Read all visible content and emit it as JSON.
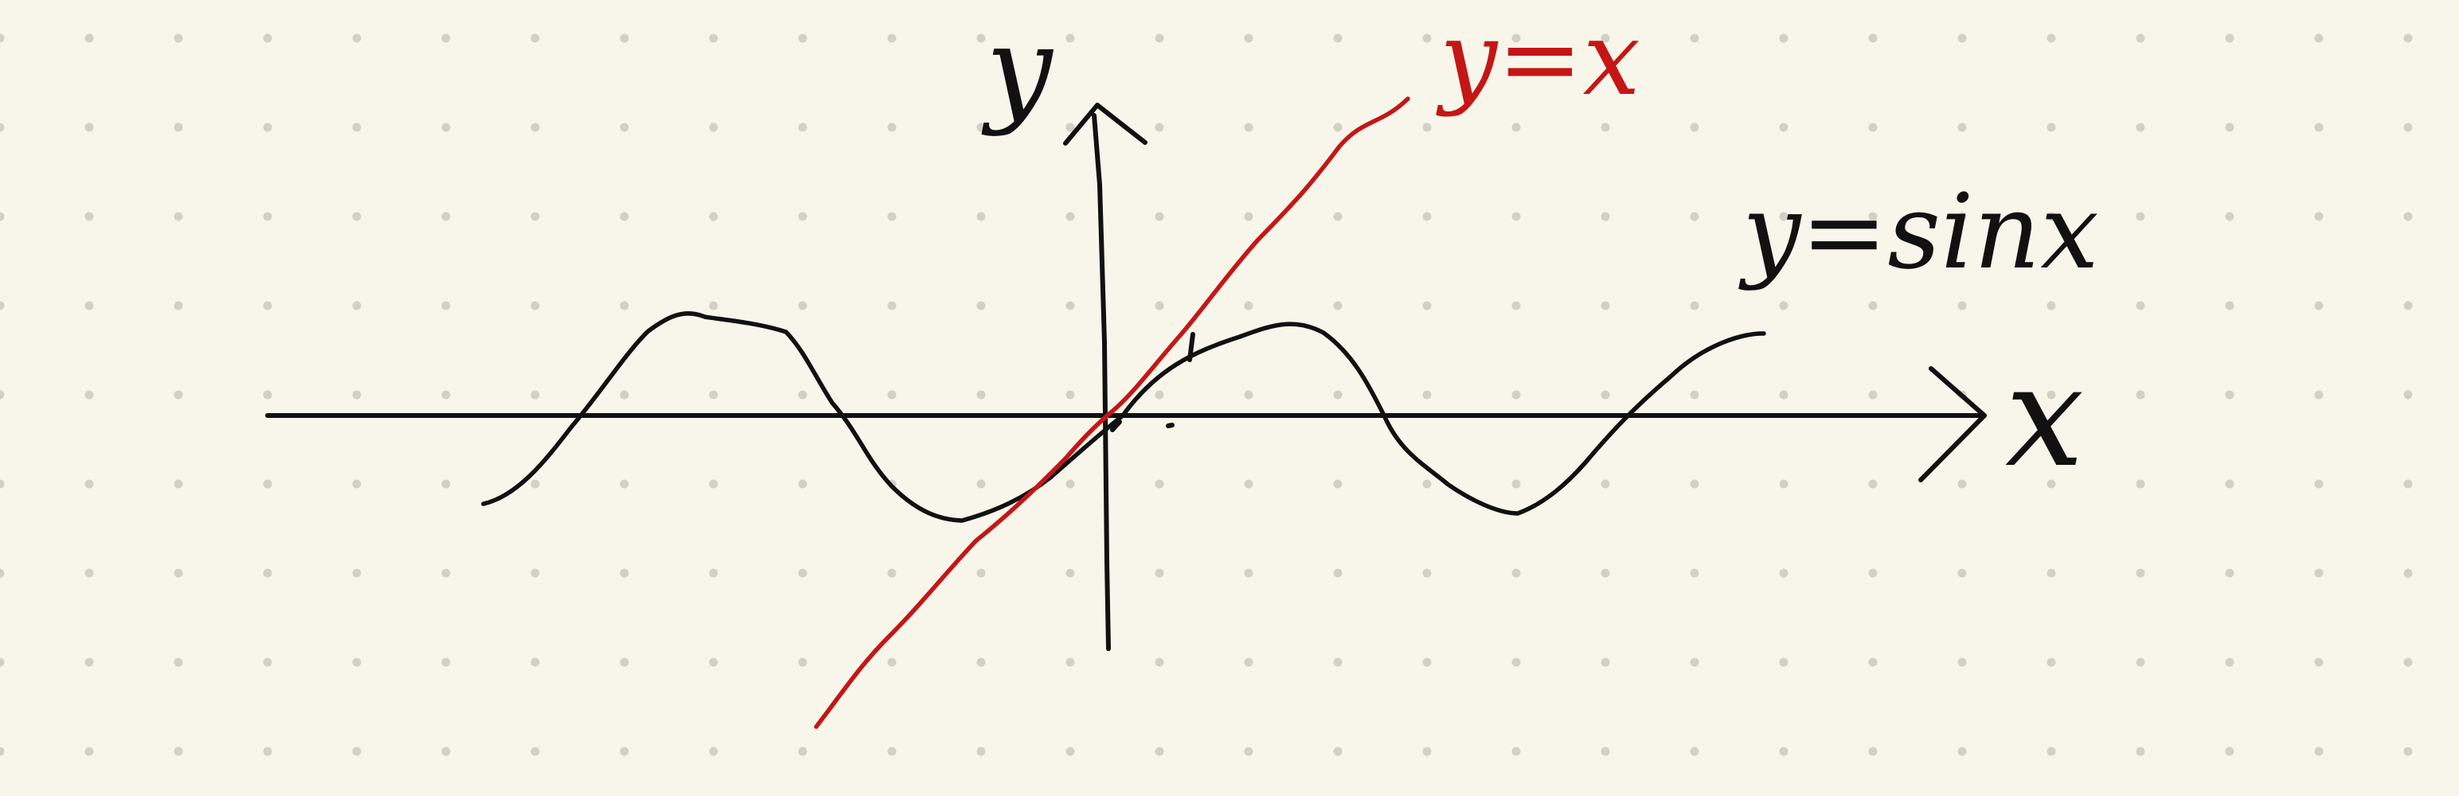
{
  "labels": {
    "y_axis": "y",
    "x_axis": "x",
    "line_label": "y=x",
    "sine_label": "y=sinx"
  },
  "colors": {
    "background": "#f8f6ea",
    "grid_dot": "#d3d1c7",
    "ink": "#111111",
    "red_ink": "#c51616"
  }
}
